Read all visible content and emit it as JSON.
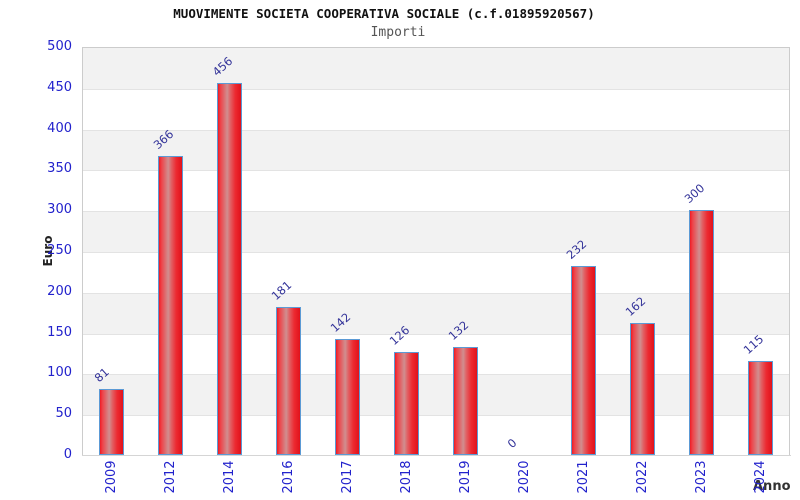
{
  "chart_data": {
    "type": "bar",
    "title": "MUOVIMENTE SOCIETA COOPERATIVA SOCIALE (c.f.01895920567)",
    "subtitle": "Importi",
    "xlabel": "Anno",
    "ylabel": "Euro",
    "categories": [
      "2009",
      "2012",
      "2014",
      "2016",
      "2017",
      "2018",
      "2019",
      "2020",
      "2021",
      "2022",
      "2023",
      "2024"
    ],
    "values": [
      81,
      366,
      456,
      181,
      142,
      126,
      132,
      0,
      232,
      162,
      300,
      115
    ],
    "ylim": [
      0,
      500
    ],
    "ytick_step": 50,
    "grid": "alternating-horizontal-bands",
    "legend": "none",
    "colors": {
      "bar_edge_red": "#ee1b24",
      "bar_center_sheen": "#d08e8f",
      "bar_border_blue": "#5b9ad5",
      "tick_label_blue": "#2222cc",
      "value_label_navy": "#333399",
      "band_gray": "#f2f2f2",
      "band_white": "#ffffff",
      "gridline": "#e3e3e3",
      "plot_border": "#cccccc",
      "axis_title": "#333333",
      "title_text": "#111111",
      "subtitle_text": "#555555"
    }
  }
}
